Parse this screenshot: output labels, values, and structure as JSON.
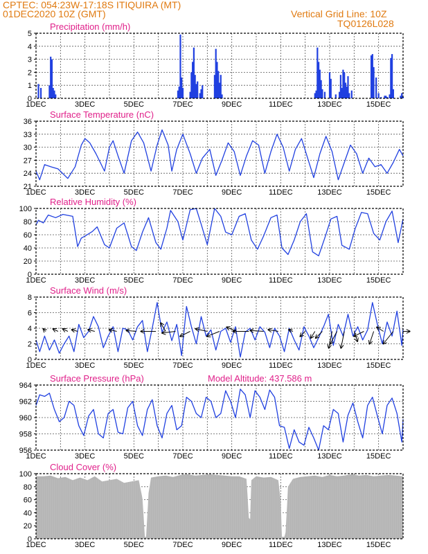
{
  "header": {
    "line1": "CPTEC:   054:23W-17:18S   ITIQUIRA (MT)",
    "line2": "01DEC2020 10Z (GMT)",
    "grid_note": "Vertical Grid Line: 10Z",
    "code": "TQ0126L028"
  },
  "colors": {
    "header": "#e07a10",
    "title": "#e0208a",
    "series": "#2040e0",
    "cloud": "#b4b4b4",
    "wind": "#000000"
  },
  "chart_data": [
    {
      "type": "bar",
      "title": "Precipitation (mm/h)",
      "xticks": [
        "1DEC",
        "3DEC",
        "5DEC",
        "7DEC",
        "9DEC",
        "11DEC",
        "13DEC",
        "15DEC"
      ],
      "ylim": [
        0,
        5
      ],
      "yticks": [
        0,
        1,
        2,
        3,
        4,
        5
      ],
      "x": [
        0.1,
        0.2,
        0.55,
        0.6,
        0.65,
        0.7,
        0.75,
        0.8,
        5.8,
        5.85,
        5.9,
        5.95,
        6.0,
        6.3,
        6.35,
        6.4,
        6.45,
        6.5,
        6.55,
        6.6,
        6.7,
        6.75,
        6.8,
        7.3,
        7.35,
        7.4,
        7.45,
        7.5,
        7.55,
        7.6,
        11.4,
        11.45,
        11.5,
        11.55,
        11.6,
        11.65,
        11.7,
        11.8,
        12.0,
        12.05,
        12.25,
        12.4,
        12.45,
        12.5,
        12.55,
        12.6,
        12.65,
        12.7,
        12.75,
        12.8,
        12.9,
        13.7,
        13.75,
        13.8,
        13.9,
        14.0,
        14.1,
        14.25,
        14.3,
        14.35,
        14.45,
        14.5,
        14.55,
        14.6,
        14.9,
        14.95,
        15.0
      ],
      "values": [
        1.1,
        0.8,
        1.0,
        3.2,
        3.0,
        0.8,
        0.6,
        0.3,
        0.6,
        0.9,
        4.9,
        1.6,
        0.8,
        0.5,
        2.0,
        2.8,
        3.9,
        1.8,
        1.1,
        1.3,
        0.4,
        0.7,
        1.0,
        1.8,
        3.8,
        2.8,
        2.1,
        1.2,
        1.8,
        0.3,
        0.4,
        0.6,
        3.9,
        2.8,
        2.2,
        1.4,
        0.7,
        0.5,
        2.0,
        1.5,
        0.3,
        0.5,
        1.8,
        0.8,
        2.2,
        2.0,
        1.2,
        0.9,
        1.7,
        0.4,
        0.6,
        3.3,
        3.4,
        2.4,
        1.6,
        0.4,
        0.1,
        0.2,
        0.2,
        0.1,
        0.3,
        3.1,
        3.4,
        0.7,
        0.2,
        0.4,
        0.1
      ]
    },
    {
      "type": "line",
      "title": "Surface Temperature (nC)",
      "xticks": [
        "1DEC",
        "3DEC",
        "5DEC",
        "7DEC",
        "9DEC",
        "11DEC",
        "13DEC",
        "15DEC"
      ],
      "ylim": [
        21,
        36
      ],
      "yticks": [
        21,
        24,
        27,
        30,
        33,
        36
      ],
      "x": [
        0,
        0.15,
        0.35,
        0.6,
        0.9,
        1.3,
        1.6,
        1.85,
        2.0,
        2.2,
        2.45,
        2.8,
        3.0,
        3.15,
        3.35,
        3.6,
        3.9,
        4.15,
        4.4,
        4.7,
        4.95,
        5.15,
        5.4,
        5.55,
        5.75,
        6.0,
        6.3,
        6.55,
        6.8,
        7.1,
        7.35,
        7.6,
        7.85,
        8.1,
        8.35,
        8.6,
        8.85,
        9.1,
        9.35,
        9.6,
        9.85,
        10.1,
        10.35,
        10.6,
        10.85,
        11.1,
        11.35,
        11.6,
        11.85,
        12.1,
        12.35,
        12.6,
        12.85,
        13.1,
        13.35,
        13.6,
        13.85,
        14.1,
        14.35,
        14.6,
        14.85,
        15.0
      ],
      "values": [
        24.5,
        22.5,
        26.0,
        25.5,
        25.0,
        22.8,
        25.5,
        30.5,
        32.0,
        31.0,
        28.5,
        24.5,
        30.0,
        31.5,
        28.0,
        24.0,
        31.5,
        33.5,
        31.0,
        24.5,
        30.5,
        34.0,
        30.5,
        24.5,
        29.5,
        33.0,
        28.5,
        24.0,
        27.5,
        29.5,
        23.5,
        27.0,
        31.0,
        29.0,
        23.5,
        28.0,
        31.5,
        30.5,
        24.0,
        29.0,
        33.0,
        30.0,
        24.5,
        29.5,
        32.0,
        27.5,
        23.0,
        28.5,
        32.5,
        29.0,
        22.5,
        26.5,
        30.5,
        28.5,
        24.0,
        27.5,
        25.5,
        26.0,
        24.0,
        26.5,
        29.5,
        28.0
      ]
    },
    {
      "type": "line",
      "title": "Relative Humidity (%)",
      "xticks": [
        "1DEC",
        "3DEC",
        "5DEC",
        "7DEC",
        "9DEC",
        "11DEC",
        "13DEC",
        "15DEC"
      ],
      "ylim": [
        0,
        100
      ],
      "yticks": [
        0,
        20,
        40,
        60,
        80,
        100
      ],
      "x": [
        0,
        0.1,
        0.3,
        0.5,
        0.8,
        1.1,
        1.5,
        1.7,
        1.85,
        2.0,
        2.3,
        2.5,
        2.8,
        3.0,
        3.3,
        3.6,
        3.9,
        4.1,
        4.35,
        4.6,
        4.9,
        5.1,
        5.35,
        5.5,
        5.8,
        6.0,
        6.3,
        6.55,
        6.75,
        7.0,
        7.3,
        7.55,
        7.75,
        8.0,
        8.3,
        8.55,
        8.8,
        9.05,
        9.3,
        9.6,
        9.85,
        10.05,
        10.3,
        10.55,
        10.8,
        11.05,
        11.3,
        11.55,
        11.8,
        12.05,
        12.3,
        12.5,
        12.8,
        13.05,
        13.3,
        13.55,
        13.8,
        14.05,
        14.3,
        14.55,
        14.8,
        15.0
      ],
      "values": [
        75,
        82,
        78,
        90,
        86,
        91,
        88,
        42,
        55,
        58,
        65,
        72,
        45,
        40,
        70,
        78,
        42,
        36,
        64,
        86,
        48,
        38,
        70,
        97,
        80,
        52,
        98,
        100,
        76,
        45,
        100,
        88,
        64,
        60,
        88,
        92,
        52,
        38,
        58,
        86,
        90,
        40,
        30,
        52,
        80,
        92,
        34,
        28,
        55,
        84,
        88,
        44,
        38,
        70,
        94,
        92,
        62,
        52,
        80,
        96,
        48,
        84
      ]
    },
    {
      "type": "line",
      "title": "Surface Wind (m/s)",
      "xticks": [
        "1DEC",
        "3DEC",
        "5DEC",
        "7DEC",
        "9DEC",
        "11DEC",
        "13DEC",
        "15DEC"
      ],
      "ylim": [
        0,
        8
      ],
      "yticks": [
        0,
        2,
        4,
        6,
        8
      ],
      "x": [
        0,
        0.15,
        0.35,
        0.55,
        0.75,
        0.95,
        1.15,
        1.35,
        1.55,
        1.75,
        1.95,
        2.15,
        2.35,
        2.55,
        2.75,
        2.95,
        3.15,
        3.35,
        3.55,
        3.75,
        3.95,
        4.15,
        4.35,
        4.55,
        4.75,
        4.95,
        5.15,
        5.35,
        5.55,
        5.75,
        5.95,
        6.15,
        6.35,
        6.55,
        6.75,
        6.95,
        7.15,
        7.35,
        7.55,
        7.75,
        7.95,
        8.15,
        8.35,
        8.55,
        8.75,
        8.95,
        9.15,
        9.35,
        9.55,
        9.75,
        9.95,
        10.15,
        10.35,
        10.55,
        10.75,
        10.95,
        11.15,
        11.35,
        11.55,
        11.75,
        11.95,
        12.15,
        12.35,
        12.55,
        12.75,
        12.95,
        13.15,
        13.35,
        13.55,
        13.75,
        13.95,
        14.15,
        14.35,
        14.55,
        14.75,
        14.95,
        15.0
      ],
      "values": [
        2.5,
        1.0,
        3.0,
        1.2,
        2.5,
        0.8,
        2.0,
        3.0,
        1.0,
        4.5,
        2.8,
        3.6,
        5.5,
        4.2,
        1.5,
        3.0,
        4.2,
        1.0,
        4.0,
        3.8,
        2.5,
        4.2,
        5.0,
        1.0,
        4.0,
        7.3,
        3.5,
        4.8,
        2.4,
        4.5,
        0.5,
        6.8,
        4.2,
        2.0,
        5.5,
        3.0,
        3.8,
        1.2,
        3.6,
        4.0,
        2.2,
        4.2,
        0.3,
        3.5,
        4.0,
        2.5,
        4.2,
        3.5,
        1.5,
        4.0,
        3.0,
        1.0,
        4.0,
        2.5,
        1.2,
        4.2,
        3.0,
        1.5,
        2.8,
        4.2,
        5.8,
        1.8,
        4.5,
        3.0,
        5.8,
        3.0,
        4.2,
        2.5,
        3.8,
        7.3,
        4.5,
        2.0,
        4.8,
        3.0,
        6.2,
        1.8,
        4.0
      ]
    },
    {
      "type": "line",
      "title": "Surface Pressure (hPa)",
      "subtitle": "Model Altitude: 437.586 m",
      "xticks": [
        "1DEC",
        "3DEC",
        "5DEC",
        "7DEC",
        "9DEC",
        "11DEC",
        "13DEC",
        "15DEC"
      ],
      "ylim": [
        956,
        964
      ],
      "yticks": [
        956,
        958,
        960,
        962,
        964
      ],
      "x": [
        0,
        0.15,
        0.35,
        0.55,
        0.75,
        0.95,
        1.15,
        1.35,
        1.55,
        1.75,
        1.95,
        2.15,
        2.35,
        2.55,
        2.75,
        2.95,
        3.15,
        3.35,
        3.55,
        3.75,
        3.95,
        4.15,
        4.35,
        4.55,
        4.75,
        4.95,
        5.15,
        5.35,
        5.55,
        5.75,
        5.95,
        6.15,
        6.35,
        6.55,
        6.75,
        6.95,
        7.15,
        7.35,
        7.55,
        7.75,
        7.95,
        8.15,
        8.35,
        8.55,
        8.75,
        8.95,
        9.15,
        9.35,
        9.55,
        9.75,
        9.95,
        10.15,
        10.35,
        10.55,
        10.75,
        10.95,
        11.15,
        11.35,
        11.55,
        11.75,
        11.95,
        12.15,
        12.35,
        12.55,
        12.75,
        12.95,
        13.15,
        13.35,
        13.55,
        13.75,
        13.95,
        14.15,
        14.35,
        14.55,
        14.75,
        14.95,
        15.0
      ],
      "values": [
        961.5,
        962.8,
        962.6,
        963.0,
        961.0,
        959.5,
        960.0,
        962.0,
        961.5,
        959.0,
        957.8,
        960.2,
        961.0,
        958.0,
        957.5,
        960.5,
        961.0,
        958.2,
        958.0,
        961.2,
        962.0,
        959.0,
        957.8,
        961.0,
        962.2,
        959.0,
        957.5,
        960.5,
        961.5,
        958.5,
        959.0,
        962.5,
        962.0,
        960.5,
        960.0,
        962.5,
        962.0,
        960.0,
        960.5,
        963.3,
        962.0,
        960.0,
        963.5,
        962.8,
        960.0,
        963.3,
        962.5,
        961.0,
        963.4,
        962.5,
        959.0,
        958.8,
        956.2,
        958.5,
        957.0,
        956.6,
        958.8,
        957.5,
        956.0,
        959.0,
        958.5,
        961.0,
        960.5,
        957.0,
        960.3,
        961.8,
        959.5,
        957.5,
        961.5,
        962.5,
        960.2,
        958.0,
        961.5,
        962.4,
        960.5,
        957.0,
        959.8
      ]
    },
    {
      "type": "area",
      "title": "Cloud Cover (%)",
      "xticks": [
        "1DEC",
        "3DEC",
        "5DEC",
        "7DEC",
        "9DEC",
        "11DEC",
        "13DEC",
        "15DEC"
      ],
      "ylim": [
        0,
        100
      ],
      "yticks": [
        0,
        20,
        40,
        60,
        80,
        100
      ],
      "x": [
        0,
        0.3,
        0.6,
        0.9,
        1.2,
        1.5,
        1.8,
        2.1,
        2.4,
        2.7,
        3.0,
        3.3,
        3.6,
        3.9,
        4.2,
        4.35,
        4.45,
        4.5,
        4.6,
        4.7,
        5.0,
        5.3,
        5.6,
        5.9,
        6.2,
        6.5,
        6.8,
        7.1,
        7.4,
        7.7,
        8.0,
        8.3,
        8.6,
        8.7,
        8.75,
        8.8,
        9.0,
        9.3,
        9.6,
        9.9,
        10.0,
        10.05,
        10.15,
        10.2,
        10.3,
        10.5,
        10.8,
        11.1,
        11.4,
        11.7,
        12.0,
        12.3,
        12.6,
        12.9,
        13.2,
        13.5,
        13.8,
        14.1,
        14.4,
        14.7,
        15.0
      ],
      "values": [
        96,
        96,
        97,
        93,
        95,
        90,
        94,
        90,
        96,
        88,
        90,
        92,
        86,
        88,
        90,
        62,
        3,
        3,
        70,
        94,
        96,
        97,
        95,
        98,
        99,
        97,
        98,
        99,
        98,
        97,
        96,
        96,
        92,
        32,
        30,
        90,
        96,
        94,
        95,
        90,
        60,
        3,
        3,
        10,
        80,
        92,
        95,
        96,
        97,
        95,
        98,
        96,
        97,
        99,
        97,
        98,
        96,
        97,
        98,
        97,
        96
      ]
    },
    {
      "type": "quiver",
      "title": "Surface Wind vectors",
      "x": [
        0.4,
        0.9,
        1.3,
        1.7,
        2.4,
        3.3,
        4.1,
        4.9,
        5.3,
        5.7,
        6.3,
        7.0,
        7.5,
        8.2,
        8.7,
        9.3,
        9.9,
        10.5,
        11.0,
        11.4,
        11.7,
        12.1,
        12.3,
        12.6,
        13.0,
        13.4,
        13.8,
        14.2,
        14.6,
        15.0
      ],
      "u": [
        -0.3,
        -0.6,
        -0.6,
        -0.7,
        -0.8,
        -0.9,
        -1.2,
        -1.8,
        -0.6,
        -1.6,
        -1.2,
        -1.4,
        -1.5,
        -1.2,
        -1.9,
        -1.6,
        -1.2,
        -0.5,
        -0.6,
        -0.5,
        -0.8,
        -0.4,
        -0.8,
        -0.4,
        0.4,
        -1.2,
        -0.5,
        -0.8,
        -1.2,
        0.8
      ],
      "v": [
        0.3,
        0.3,
        0.3,
        0.2,
        0.2,
        0.2,
        0.1,
        0.0,
        1.0,
        -0.2,
        -0.6,
        0.3,
        -0.6,
        0.5,
        0.0,
        0.1,
        0.2,
        0.2,
        -0.6,
        -0.8,
        -0.8,
        -2.0,
        -1.5,
        -2.0,
        -1.2,
        -0.6,
        -1.5,
        0.5,
        -1.5,
        0.0
      ],
      "y_level": 3.6
    }
  ]
}
